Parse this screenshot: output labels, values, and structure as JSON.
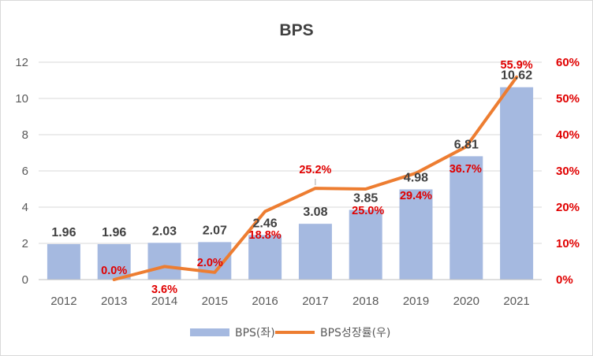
{
  "chart_data": {
    "type": "bar+line",
    "title": "BPS",
    "categories": [
      "2012",
      "2013",
      "2014",
      "2015",
      "2016",
      "2017",
      "2018",
      "2019",
      "2020",
      "2021"
    ],
    "series": [
      {
        "name": "BPS(좌)",
        "type": "bar",
        "axis": "left",
        "color": "#a5b9e0",
        "values": [
          1.96,
          1.96,
          2.03,
          2.07,
          2.46,
          3.08,
          3.85,
          4.98,
          6.81,
          10.62
        ],
        "labels": [
          "1.96",
          "1.96",
          "2.03",
          "2.07",
          "2.46",
          "3.08",
          "3.85",
          "4.98",
          "6.81",
          "10.62"
        ]
      },
      {
        "name": "BPS성장률(우)",
        "type": "line",
        "axis": "right",
        "color": "#ed7d31",
        "values": [
          null,
          0.0,
          3.6,
          2.0,
          18.8,
          25.2,
          25.0,
          29.4,
          36.7,
          55.9
        ],
        "labels": [
          null,
          "0.0%",
          "3.6%",
          "2.0%",
          "18.8%",
          "25.2%",
          "25.0%",
          "29.4%",
          "36.7%",
          "55.9%"
        ]
      }
    ],
    "y_left": {
      "min": 0,
      "max": 12,
      "ticks": [
        0,
        2,
        4,
        6,
        8,
        10,
        12
      ],
      "tick_labels": [
        "0",
        "2",
        "4",
        "6",
        "8",
        "10",
        "12"
      ]
    },
    "y_right": {
      "min": 0,
      "max": 60,
      "ticks": [
        0,
        10,
        20,
        30,
        40,
        50,
        60
      ],
      "tick_labels": [
        "0%",
        "10%",
        "20%",
        "30%",
        "40%",
        "50%",
        "60%"
      ],
      "color": "#e00000"
    },
    "gridlines": true,
    "legend_position": "bottom"
  }
}
